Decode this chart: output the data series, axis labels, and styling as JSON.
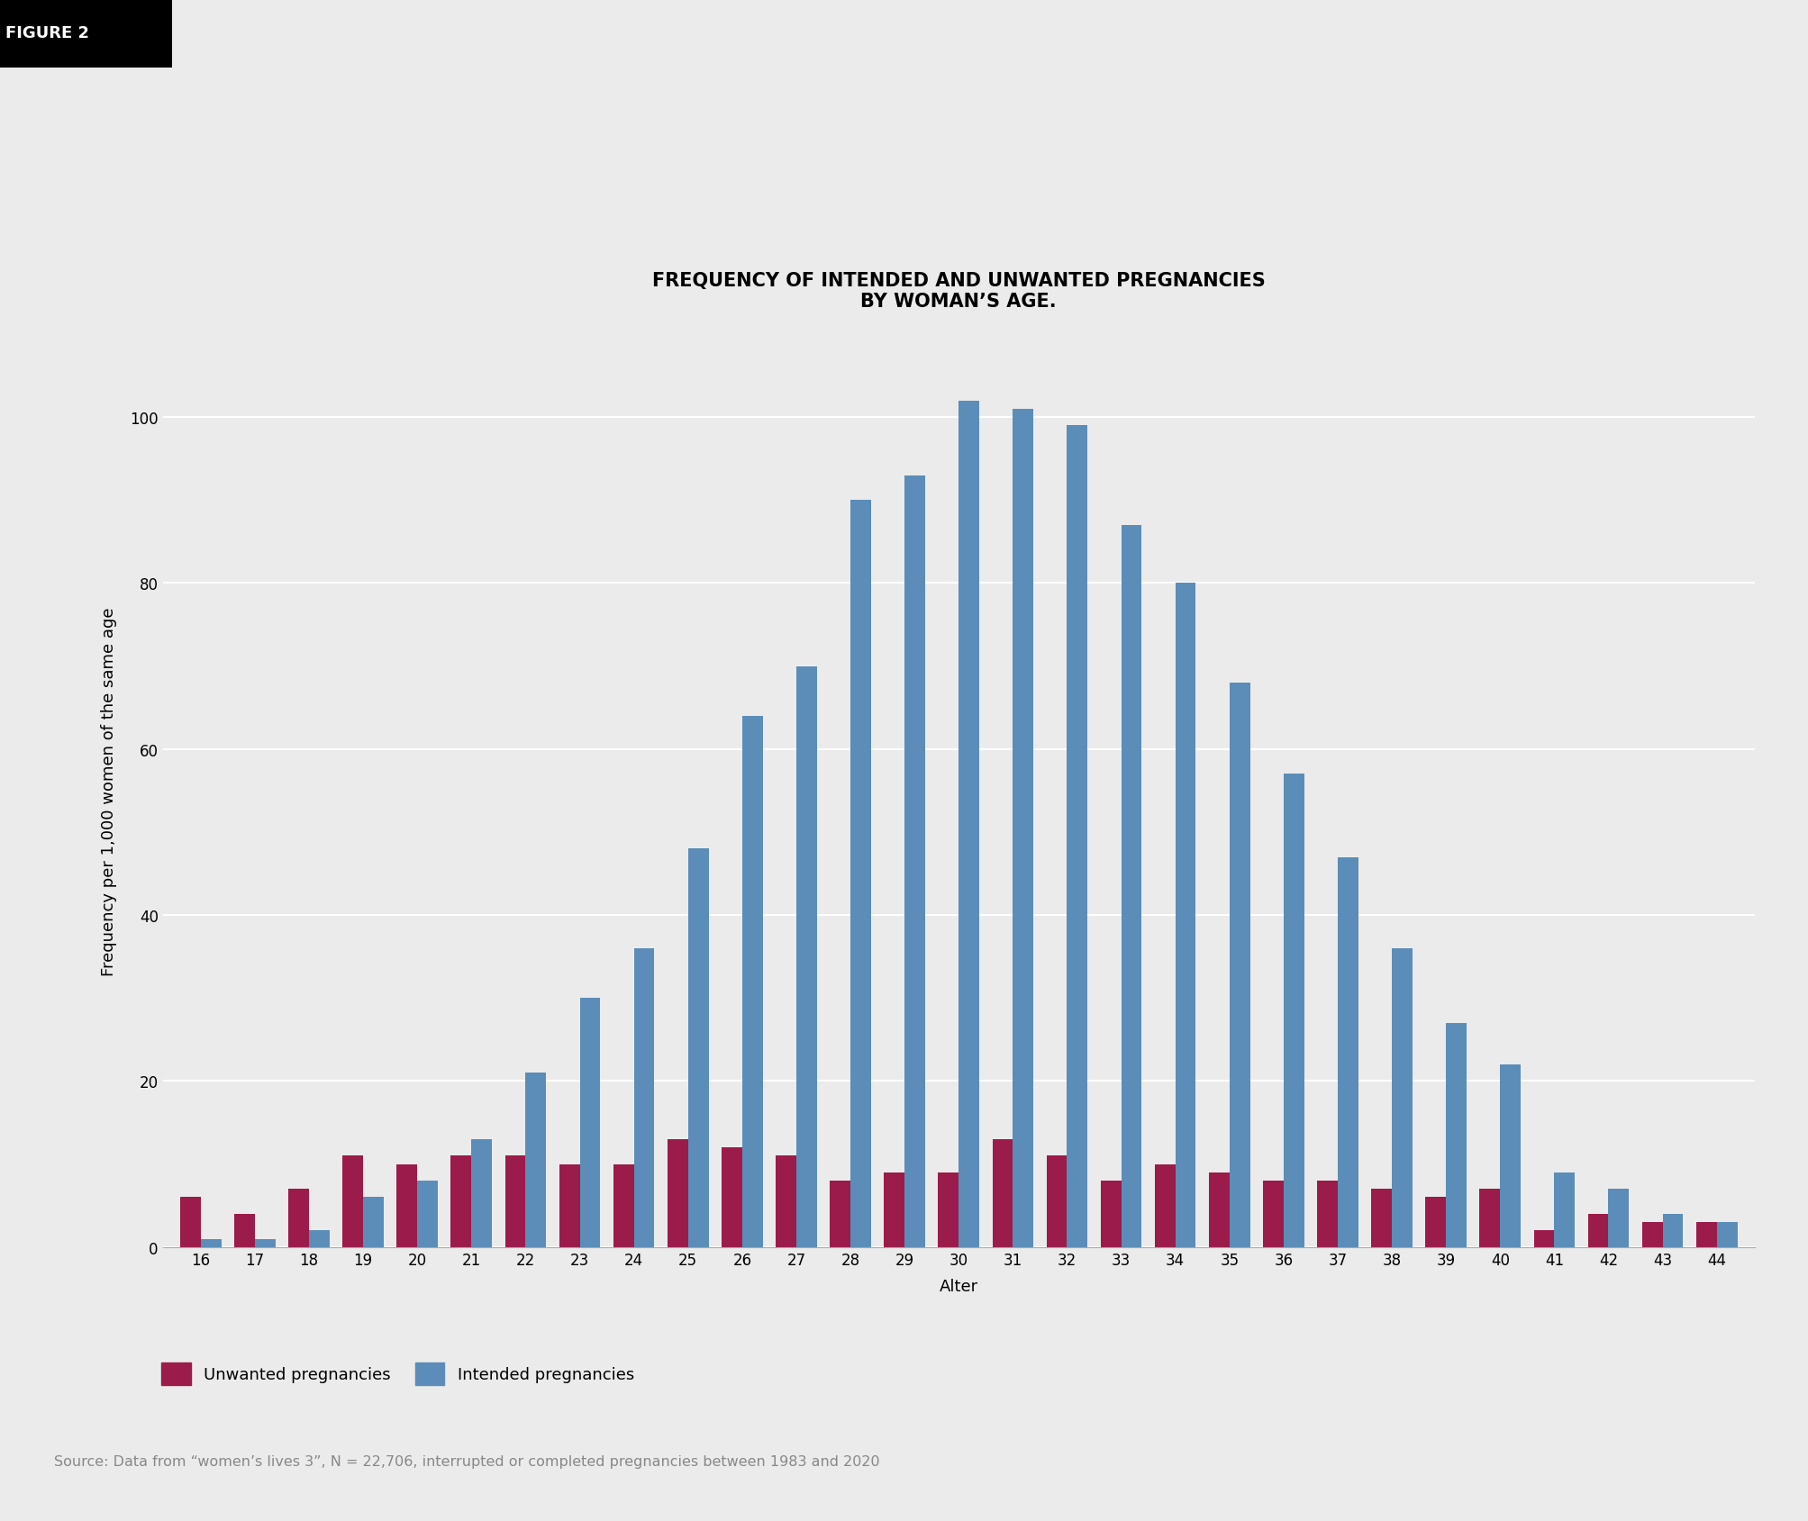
{
  "ages": [
    16,
    17,
    18,
    19,
    20,
    21,
    22,
    23,
    24,
    25,
    26,
    27,
    28,
    29,
    30,
    31,
    32,
    33,
    34,
    35,
    36,
    37,
    38,
    39,
    40,
    41,
    42,
    43,
    44
  ],
  "unwanted": [
    6,
    4,
    7,
    11,
    10,
    11,
    11,
    10,
    10,
    13,
    12,
    11,
    8,
    9,
    9,
    13,
    11,
    8,
    10,
    9,
    8,
    8,
    7,
    6,
    7,
    2,
    4,
    3,
    3
  ],
  "intended": [
    1,
    1,
    2,
    6,
    8,
    13,
    21,
    30,
    36,
    48,
    64,
    70,
    90,
    93,
    102,
    101,
    99,
    87,
    80,
    68,
    57,
    47,
    36,
    27,
    22,
    9,
    7,
    4,
    3
  ],
  "unwanted_color": "#9B1B4A",
  "intended_color": "#5B8DB8",
  "background_color": "#EBEBEB",
  "title_line1": "FREQUENCY OF INTENDED AND UNWANTED PREGNANCIES",
  "title_line2": "BY WOMAN’S AGE.",
  "xlabel": "Alter",
  "ylabel": "Frequency per 1,000 women of the same age",
  "yticks": [
    0,
    20,
    40,
    60,
    80,
    100
  ],
  "ylim": [
    0,
    110
  ],
  "legend_unwanted": "Unwanted pregnancies",
  "legend_intended": "Intended pregnancies",
  "source_text": "Source: Data from “women’s lives 3”, N = 22,706, interrupted or completed pregnancies between 1983 and 2020",
  "figure_label": "FIGURE 2",
  "title_fontsize": 15,
  "axis_label_fontsize": 13,
  "tick_fontsize": 12,
  "legend_fontsize": 13,
  "source_fontsize": 11.5
}
